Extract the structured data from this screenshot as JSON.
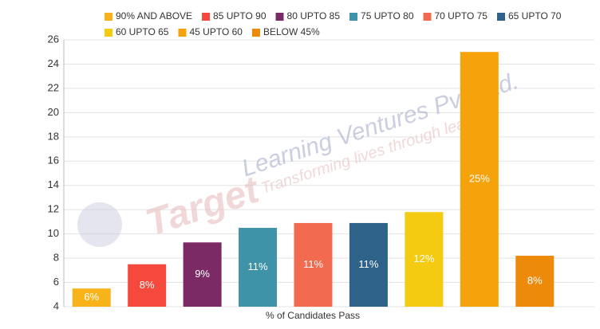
{
  "chart_data": {
    "type": "bar",
    "categories": [
      "90% AND ABOVE",
      "85 UPTO 90",
      "80 UPTO 85",
      "75 UPTO 80",
      "70 UPTO 75",
      "65 UPTO 70",
      "60 UPTO 65",
      "45 UPTO 60",
      "BELOW 45%"
    ],
    "values": [
      5.5,
      7.5,
      9.3,
      10.5,
      10.9,
      10.9,
      11.8,
      25,
      8.2
    ],
    "value_labels": [
      "6%",
      "8%",
      "9%",
      "11%",
      "11%",
      "11%",
      "12%",
      "25%",
      "8%"
    ],
    "colors": [
      "#f9b31a",
      "#f5493d",
      "#7b2a66",
      "#3f93a8",
      "#f26b50",
      "#2e6289",
      "#f4cb10",
      "#f5a20b",
      "#ee8a0a"
    ],
    "xlabel": "% of Candidates Pass",
    "ylim": [
      4,
      26
    ],
    "yticks": [
      4,
      6,
      8,
      10,
      12,
      14,
      16,
      18,
      20,
      22,
      24,
      26
    ],
    "grid": true,
    "watermark": {
      "title": "Target",
      "company": "Learning Ventures Pvt. Ltd.",
      "tagline": "Transforming lives through learning"
    }
  }
}
